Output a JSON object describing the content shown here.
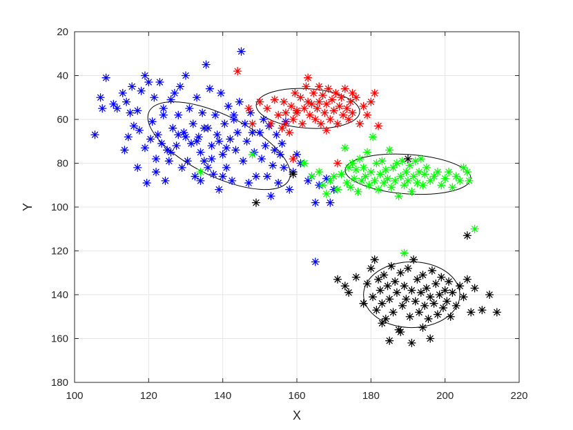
{
  "chart_data": {
    "type": "scatter",
    "title": "",
    "xlabel": "X",
    "ylabel": "Y",
    "xlim": [
      100,
      220
    ],
    "ylim": [
      20,
      180
    ],
    "y_reversed": true,
    "xticks": [
      100,
      120,
      140,
      160,
      180,
      200,
      220
    ],
    "yticks": [
      20,
      40,
      60,
      80,
      100,
      120,
      140,
      160,
      180
    ],
    "grid": true,
    "marker": "asterisk",
    "series": [
      {
        "color": "#0000ff",
        "points": [
          [
            105.5,
            67
          ],
          [
            107,
            50
          ],
          [
            107.5,
            55
          ],
          [
            108.5,
            41
          ],
          [
            110.5,
            53
          ],
          [
            111.5,
            55
          ],
          [
            113,
            48
          ],
          [
            113.5,
            74
          ],
          [
            114,
            52
          ],
          [
            114.5,
            68
          ],
          [
            115,
            57
          ],
          [
            115.5,
            45
          ],
          [
            116,
            63
          ],
          [
            117,
            56
          ],
          [
            117.5,
            65
          ],
          [
            118,
            47
          ],
          [
            119,
            40
          ],
          [
            119.5,
            89
          ],
          [
            120,
            43
          ],
          [
            120.5,
            69
          ],
          [
            121,
            61
          ],
          [
            121.5,
            50
          ],
          [
            122,
            84
          ],
          [
            122.5,
            67
          ],
          [
            123,
            43
          ],
          [
            123.5,
            71
          ],
          [
            124,
            58
          ],
          [
            124.5,
            88
          ],
          [
            125,
            74
          ],
          [
            125.5,
            79
          ],
          [
            126,
            51
          ],
          [
            126.5,
            64
          ],
          [
            127,
            48
          ],
          [
            127.5,
            72
          ],
          [
            128,
            58
          ],
          [
            128.5,
            45
          ],
          [
            129,
            82
          ],
          [
            129.5,
            66
          ],
          [
            130,
            40
          ],
          [
            130.5,
            79
          ],
          [
            131,
            55
          ],
          [
            131.5,
            71
          ],
          [
            132,
            62
          ],
          [
            132.5,
            86
          ],
          [
            133,
            50
          ],
          [
            133.5,
            68
          ],
          [
            134,
            75
          ],
          [
            134.5,
            57
          ],
          [
            135,
            79
          ],
          [
            135.5,
            35
          ],
          [
            136,
            64
          ],
          [
            136.5,
            46
          ],
          [
            137,
            72
          ],
          [
            137.5,
            85
          ],
          [
            138,
            58
          ],
          [
            138.5,
            67
          ],
          [
            139,
            92
          ],
          [
            139.5,
            48
          ],
          [
            140,
            76
          ],
          [
            140.5,
            62
          ],
          [
            141,
            82
          ],
          [
            141.5,
            54
          ],
          [
            142,
            69
          ],
          [
            142.5,
            88
          ],
          [
            143,
            60
          ],
          [
            143.5,
            74
          ],
          [
            144,
            66
          ],
          [
            144.5,
            52
          ],
          [
            145,
            29
          ],
          [
            145.5,
            79
          ],
          [
            146,
            62
          ],
          [
            146.5,
            70
          ],
          [
            147,
            89
          ],
          [
            147.5,
            57
          ],
          [
            148,
            66
          ],
          [
            148.5,
            75
          ],
          [
            149,
            86
          ],
          [
            150,
            66
          ],
          [
            150.5,
            78
          ],
          [
            151,
            60
          ],
          [
            151.5,
            72
          ],
          [
            152,
            86
          ],
          [
            152.5,
            63
          ],
          [
            153,
            95
          ],
          [
            153.5,
            81
          ],
          [
            154,
            74
          ],
          [
            154.5,
            67
          ],
          [
            155,
            89
          ],
          [
            155.5,
            76
          ],
          [
            156,
            71
          ],
          [
            156.5,
            82
          ],
          [
            157,
            61
          ],
          [
            158,
            92
          ],
          [
            159,
            84
          ],
          [
            160,
            76
          ],
          [
            161,
            80
          ],
          [
            163,
            88
          ],
          [
            164,
            86
          ],
          [
            165,
            98
          ],
          [
            166,
            90
          ],
          [
            168,
            87
          ],
          [
            169,
            98
          ],
          [
            170,
            92
          ],
          [
            165,
            125
          ],
          [
            133,
            70
          ],
          [
            135,
            64
          ],
          [
            137,
            78
          ],
          [
            139,
            70
          ],
          [
            141,
            73
          ],
          [
            143,
            58
          ],
          [
            136,
            82
          ],
          [
            128,
            67
          ],
          [
            126,
            75
          ],
          [
            122,
            78
          ],
          [
            119,
            73
          ],
          [
            117,
            82
          ],
          [
            124,
            55
          ],
          [
            130,
            68
          ],
          [
            134,
            88
          ],
          [
            140,
            86
          ]
        ]
      },
      {
        "color": "#ff0000",
        "points": [
          [
            144,
            38
          ],
          [
            147,
            55
          ],
          [
            148,
            62
          ],
          [
            150,
            52
          ],
          [
            152,
            55
          ],
          [
            153,
            62
          ],
          [
            154,
            51
          ],
          [
            155,
            58
          ],
          [
            156,
            64
          ],
          [
            156.5,
            52
          ],
          [
            157,
            57
          ],
          [
            158,
            66
          ],
          [
            158.5,
            54
          ],
          [
            159,
            60
          ],
          [
            159.5,
            48
          ],
          [
            160,
            56
          ],
          [
            161,
            50
          ],
          [
            161.5,
            62
          ],
          [
            162,
            55
          ],
          [
            162.5,
            45
          ],
          [
            163,
            41
          ],
          [
            163.5,
            58
          ],
          [
            164,
            53
          ],
          [
            164.5,
            48
          ],
          [
            165,
            60
          ],
          [
            165.5,
            55
          ],
          [
            166,
            52
          ],
          [
            166.5,
            62
          ],
          [
            167,
            49
          ],
          [
            167.5,
            57
          ],
          [
            168,
            53
          ],
          [
            168.5,
            46
          ],
          [
            169,
            60
          ],
          [
            169.5,
            51
          ],
          [
            170,
            56
          ],
          [
            170.5,
            48
          ],
          [
            171,
            62
          ],
          [
            171.5,
            54
          ],
          [
            172,
            50
          ],
          [
            172.5,
            58
          ],
          [
            173,
            46
          ],
          [
            173.5,
            55
          ],
          [
            174,
            60
          ],
          [
            174.5,
            52
          ],
          [
            175,
            57
          ],
          [
            176,
            50
          ],
          [
            177,
            62
          ],
          [
            178,
            54
          ],
          [
            179,
            58
          ],
          [
            180,
            52
          ],
          [
            181,
            48
          ],
          [
            182,
            63
          ],
          [
            159,
            78
          ],
          [
            171,
            80
          ],
          [
            166,
            45
          ],
          [
            163,
            52
          ],
          [
            160,
            57
          ],
          [
            157,
            62
          ],
          [
            175,
            48
          ],
          [
            168,
            65
          ]
        ]
      },
      {
        "color": "#00ff00",
        "points": [
          [
            134,
            84
          ],
          [
            148,
            76
          ],
          [
            162,
            80
          ],
          [
            164,
            86
          ],
          [
            166,
            84
          ],
          [
            167,
            90
          ],
          [
            168,
            94
          ],
          [
            169,
            88
          ],
          [
            170,
            86
          ],
          [
            171,
            92
          ],
          [
            172,
            85
          ],
          [
            173,
            73
          ],
          [
            173.5,
            89
          ],
          [
            174,
            82
          ],
          [
            174.5,
            91
          ],
          [
            175,
            80
          ],
          [
            175.5,
            87
          ],
          [
            176,
            83
          ],
          [
            176.5,
            93
          ],
          [
            177,
            78
          ],
          [
            177.5,
            88
          ],
          [
            178,
            82
          ],
          [
            178.5,
            86
          ],
          [
            179,
            75
          ],
          [
            179.5,
            90
          ],
          [
            180,
            84
          ],
          [
            180.5,
            68
          ],
          [
            181,
            88
          ],
          [
            181.5,
            80
          ],
          [
            182,
            92
          ],
          [
            182.5,
            85
          ],
          [
            183,
            79
          ],
          [
            183.5,
            89
          ],
          [
            184,
            83
          ],
          [
            184.5,
            87
          ],
          [
            185,
            74
          ],
          [
            185.5,
            91
          ],
          [
            186,
            82
          ],
          [
            186.5,
            88
          ],
          [
            187,
            80
          ],
          [
            187.5,
            95
          ],
          [
            188,
            86
          ],
          [
            188.5,
            79
          ],
          [
            189,
            90
          ],
          [
            189.5,
            84
          ],
          [
            190,
            88
          ],
          [
            190.5,
            81
          ],
          [
            191,
            93
          ],
          [
            191.5,
            86
          ],
          [
            192,
            79
          ],
          [
            192.5,
            89
          ],
          [
            193,
            84
          ],
          [
            193.5,
            78
          ],
          [
            194,
            90
          ],
          [
            194.5,
            85
          ],
          [
            195,
            82
          ],
          [
            196,
            88
          ],
          [
            197,
            86
          ],
          [
            198,
            84
          ],
          [
            199,
            90
          ],
          [
            200,
            87
          ],
          [
            201,
            84
          ],
          [
            202,
            91
          ],
          [
            203,
            86
          ],
          [
            204,
            88
          ],
          [
            205,
            82
          ],
          [
            206,
            84
          ],
          [
            206.5,
            88
          ],
          [
            208,
            110
          ],
          [
            189,
            121
          ]
        ]
      },
      {
        "color": "#000000",
        "points": [
          [
            149,
            98
          ],
          [
            159,
            85
          ],
          [
            190,
            78
          ],
          [
            206,
            113
          ],
          [
            171,
            133
          ],
          [
            173,
            136
          ],
          [
            174,
            139
          ],
          [
            176,
            132
          ],
          [
            178,
            144
          ],
          [
            179,
            135
          ],
          [
            180,
            128
          ],
          [
            180.5,
            141
          ],
          [
            181,
            124
          ],
          [
            181.5,
            147
          ],
          [
            182,
            133
          ],
          [
            182.5,
            138
          ],
          [
            183,
            144
          ],
          [
            183.5,
            131
          ],
          [
            184,
            151
          ],
          [
            184.5,
            136
          ],
          [
            185,
            142
          ],
          [
            185.5,
            127
          ],
          [
            186,
            148
          ],
          [
            186.5,
            134
          ],
          [
            187,
            139
          ],
          [
            187.5,
            156
          ],
          [
            188,
            130
          ],
          [
            188.5,
            145
          ],
          [
            189,
            136
          ],
          [
            189.5,
            142
          ],
          [
            190,
            128
          ],
          [
            190.5,
            150
          ],
          [
            191,
            138
          ],
          [
            191.5,
            124
          ],
          [
            192,
            143
          ],
          [
            192.5,
            133
          ],
          [
            193,
            148
          ],
          [
            193.5,
            139
          ],
          [
            194,
            131
          ],
          [
            194.5,
            145
          ],
          [
            195,
            137
          ],
          [
            195.5,
            151
          ],
          [
            196,
            141
          ],
          [
            196.5,
            129
          ],
          [
            197,
            144
          ],
          [
            197.5,
            135
          ],
          [
            198,
            149
          ],
          [
            198.5,
            140
          ],
          [
            199,
            132
          ],
          [
            199.5,
            146
          ],
          [
            200,
            138
          ],
          [
            200.5,
            143
          ],
          [
            201,
            134
          ],
          [
            201.5,
            150
          ],
          [
            202,
            139
          ],
          [
            203,
            145
          ],
          [
            204,
            136
          ],
          [
            205,
            141
          ],
          [
            206,
            133
          ],
          [
            207,
            148
          ],
          [
            208,
            137
          ],
          [
            210,
            147
          ],
          [
            212,
            140
          ],
          [
            214,
            148
          ],
          [
            191,
            162
          ],
          [
            196,
            160
          ],
          [
            185,
            161
          ],
          [
            188,
            157
          ],
          [
            183,
            153
          ],
          [
            194,
            155
          ]
        ]
      }
    ],
    "ellipses": [
      {
        "cx": 139,
        "cy": 72,
        "rx": 21,
        "ry": 14,
        "angle_deg": 26
      },
      {
        "cx": 163,
        "cy": 55,
        "rx": 14,
        "ry": 9,
        "angle_deg": 4
      },
      {
        "cx": 190,
        "cy": 85,
        "rx": 17,
        "ry": 9,
        "angle_deg": 4
      },
      {
        "cx": 191,
        "cy": 140,
        "rx": 13,
        "ry": 15,
        "angle_deg": 0
      }
    ]
  }
}
